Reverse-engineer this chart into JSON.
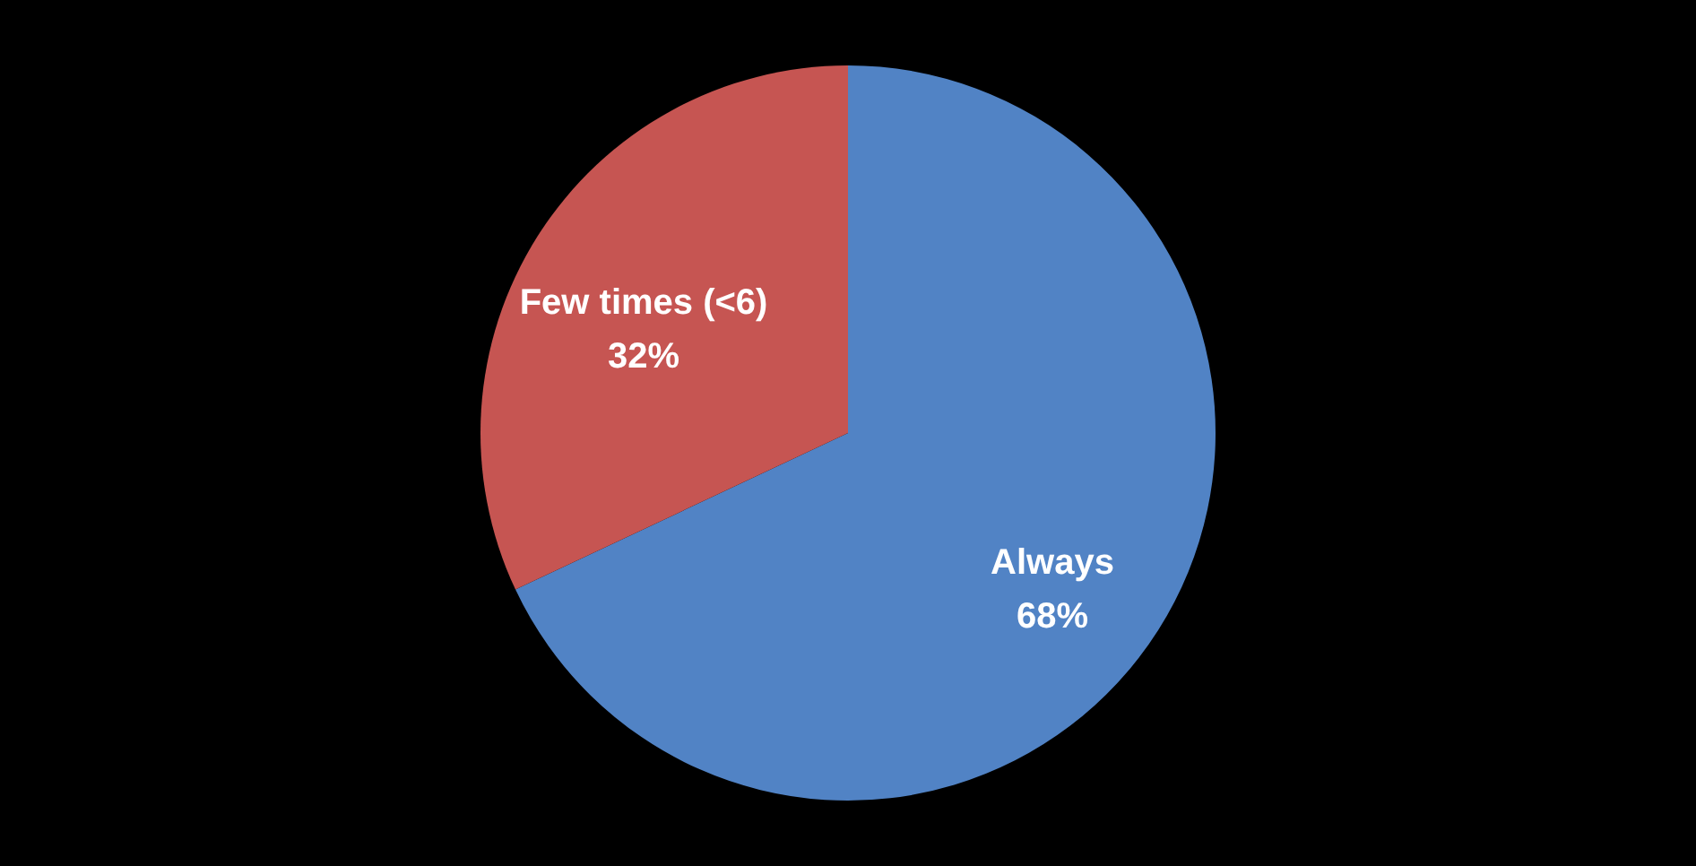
{
  "chart_data": {
    "type": "pie",
    "categories": [
      "Always",
      "Few times (<6)"
    ],
    "values": [
      68,
      32
    ],
    "value_labels": [
      "68%",
      "32%"
    ],
    "colors": [
      "#5183c5",
      "#c65552"
    ],
    "legend": false
  }
}
